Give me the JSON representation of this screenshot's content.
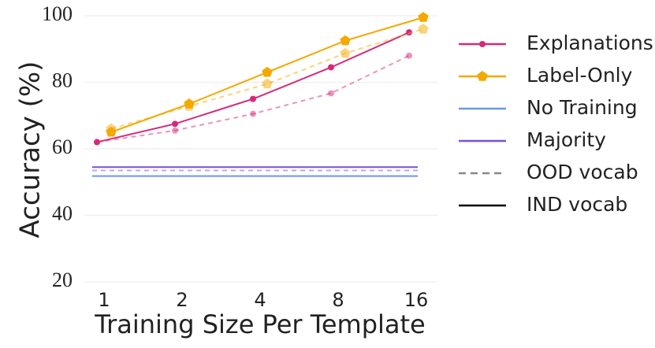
{
  "chart_data": {
    "type": "line",
    "ylabel": "Accuracy (%)",
    "xlabel": "Training Size Per Template",
    "categories": [
      "1",
      "2",
      "4",
      "8",
      "16"
    ],
    "ylim": [
      20,
      100
    ],
    "yticks": [
      20,
      40,
      60,
      80,
      100
    ],
    "grid": true,
    "legend": "right",
    "series": [
      {
        "name": "Explanations",
        "color": "#d6297a",
        "marker": "circle",
        "values": [
          62,
          67.5,
          75,
          84.5,
          95
        ],
        "ood_values": [
          62,
          65.5,
          70.5,
          76.7,
          88
        ]
      },
      {
        "name": "Label-Only",
        "color": "#f5a800",
        "marker": "pentagon",
        "values": [
          65,
          73.5,
          83,
          92.5,
          99.5
        ],
        "ood_values": [
          66,
          72.8,
          79.5,
          88.7,
          96
        ]
      },
      {
        "name": "No Training",
        "color": "#6a96ea",
        "value": 51.8
      },
      {
        "name": "Majority",
        "color": "#7a4fd8",
        "value": 54.5,
        "ood_value": 53.5
      }
    ],
    "linestyles": [
      {
        "name": "OOD vocab",
        "color": "#888888",
        "dashed": true
      },
      {
        "name": "IND vocab",
        "color": "#000000",
        "dashed": false
      }
    ]
  }
}
